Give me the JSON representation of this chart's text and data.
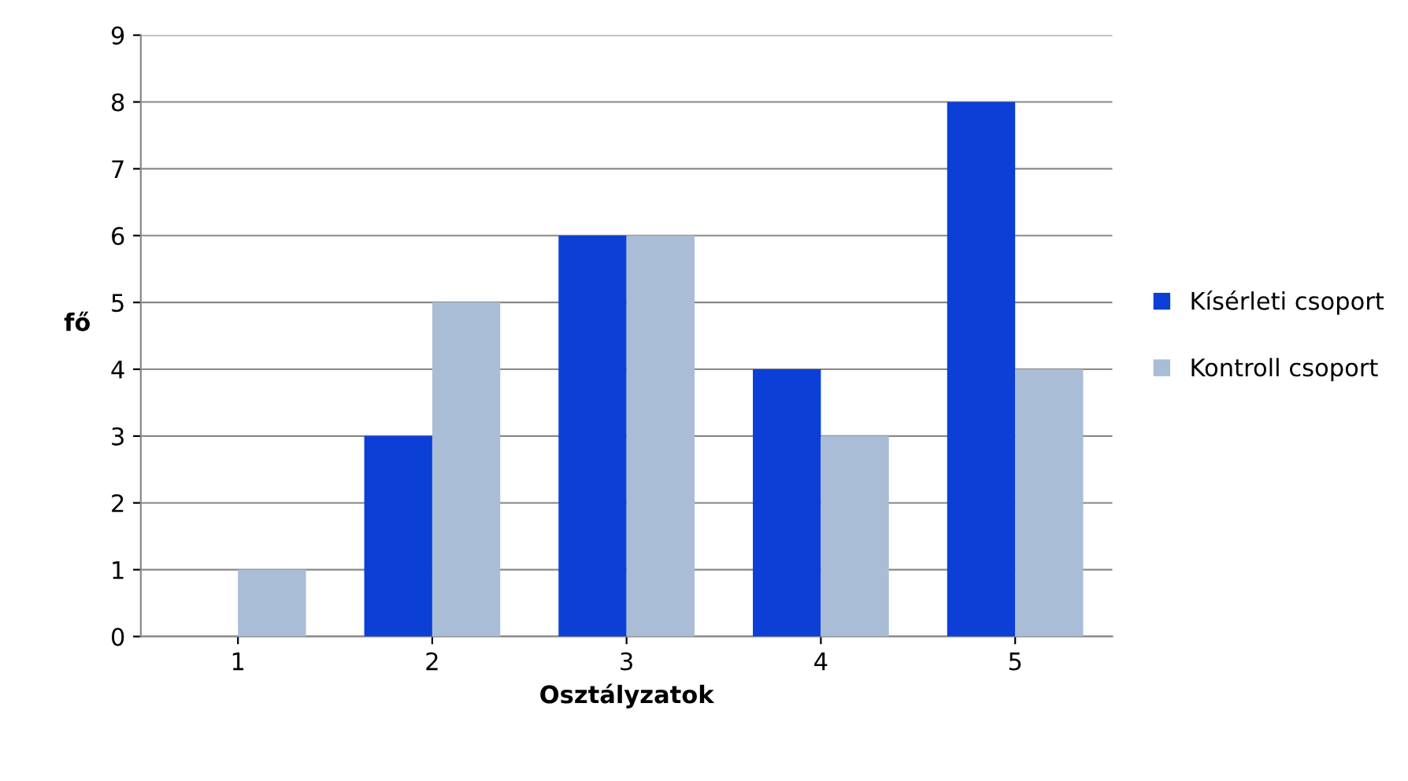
{
  "chart_data": {
    "type": "bar",
    "xlabel": "Osztályzatok",
    "ylabel": "fő",
    "categories": [
      "1",
      "2",
      "3",
      "4",
      "5"
    ],
    "series": [
      {
        "name": "Kísérleti csoport",
        "color": "#0b3fd6",
        "values": [
          0,
          3,
          6,
          4,
          8
        ]
      },
      {
        "name": "Kontroll csoport",
        "color": "#a9bdd6",
        "values": [
          1,
          5,
          6,
          3,
          4
        ]
      }
    ],
    "ylim": [
      0,
      9
    ],
    "yticks": [
      0,
      1,
      2,
      3,
      4,
      5,
      6,
      7,
      8,
      9
    ],
    "grid": "y",
    "legend": "right"
  }
}
